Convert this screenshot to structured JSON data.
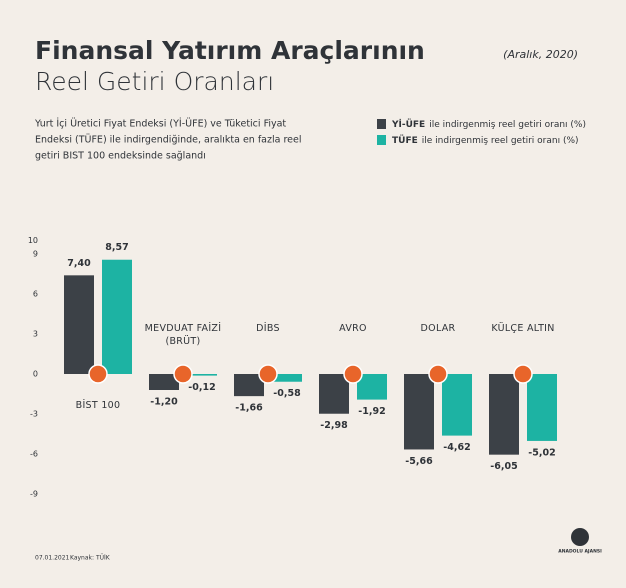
{
  "chart_data": {
    "type": "bar",
    "title": "Finansal Yatırım Araçlarının",
    "title_line2": "Reel Getiri Oranları",
    "date": "(Aralık, 2020)",
    "subtitle": [
      "Yurt İçi Üretici Fiyat Endeksi (Yİ-ÜFE) ve Tüketici Fiyat",
      "Endeksi (TÜFE) ile indirgendiğinde, aralıkta en fazla reel",
      "getiri BIST 100 endeksinde sağlandı"
    ],
    "categories": [
      "BİST 100",
      "MEVDUAT FAİZİ (BRÜT)",
      "DİBS",
      "AVRO",
      "DOLAR",
      "KÜLÇE ALTIN"
    ],
    "series": [
      {
        "name": "Yİ-ÜFE",
        "legend_text": "ile indirgenmiş reel getiri oranı (%)",
        "color": "#3c4147",
        "values": [
          7.4,
          -1.2,
          -1.66,
          -2.98,
          -5.66,
          -6.05
        ],
        "value_labels": [
          "7,40",
          "-1,20",
          "-1,66",
          "-2,98",
          "-5,66",
          "-6,05"
        ]
      },
      {
        "name": "TÜFE",
        "legend_text": "ile indirgenmiş reel getiri oranı (%)",
        "color": "#1db3a3",
        "values": [
          8.57,
          -0.12,
          -0.58,
          -1.92,
          -4.62,
          -5.02
        ],
        "value_labels": [
          "8,57",
          "-0,12",
          "-0,58",
          "-1,92",
          "-4,62",
          "-5,02"
        ]
      }
    ],
    "ylim": [
      -9,
      12
    ],
    "yticks": [
      10,
      9,
      6,
      3,
      0,
      -3,
      -6,
      -9
    ],
    "grid": false,
    "footer_date": "07.01.2021",
    "source": "Kaynak: TÜİK",
    "logo": "ANADOLU AJANSI"
  }
}
